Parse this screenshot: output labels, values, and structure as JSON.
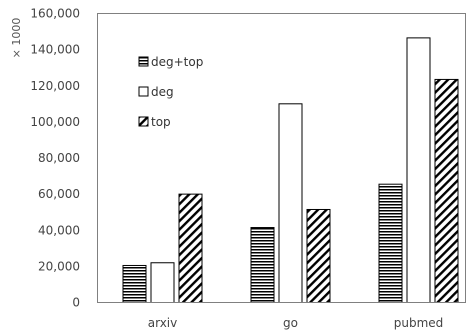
{
  "chart_data": {
    "type": "bar",
    "unit_label": "× 1000",
    "categories": [
      "arxiv",
      "go",
      "pubmed"
    ],
    "y_ticks": [
      "0",
      "20,000",
      "40,000",
      "60,000",
      "80,000",
      "100,000",
      "120,000",
      "140,000",
      "160,000"
    ],
    "ylim": [
      0,
      160000
    ],
    "series": [
      {
        "name": "deg+top",
        "pattern": "horizontal-stripes",
        "values": [
          20500,
          41500,
          65500
        ]
      },
      {
        "name": "deg",
        "pattern": "solid-white",
        "values": [
          22000,
          110000,
          146500
        ]
      },
      {
        "name": "top",
        "pattern": "diagonal-stripes",
        "values": [
          60000,
          51500,
          123500
        ]
      }
    ],
    "grid": false,
    "legend_position": "top-left-inside",
    "colors": {
      "stroke": "#000000",
      "axis": "#808080",
      "fill": "#ffffff"
    }
  }
}
